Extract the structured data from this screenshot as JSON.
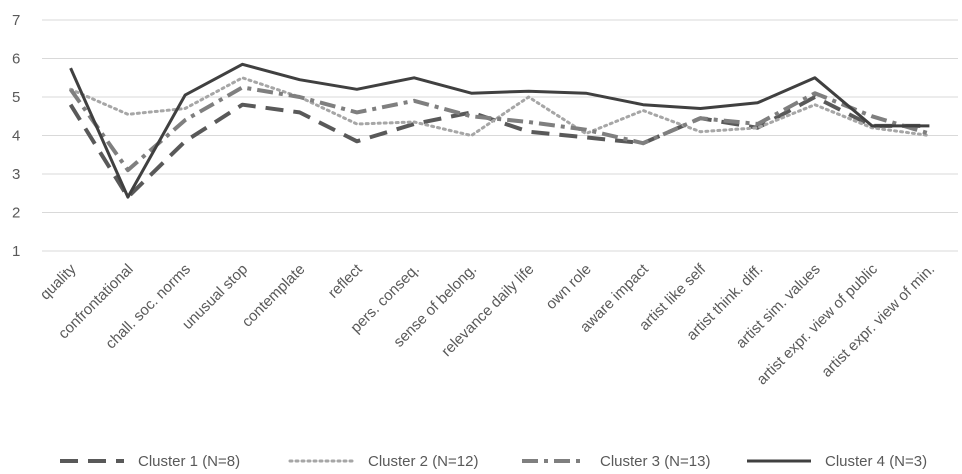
{
  "chart_data": {
    "type": "line",
    "title": "",
    "xlabel": "",
    "ylabel": "",
    "ylim": [
      1,
      7
    ],
    "yticks": [
      1,
      2,
      3,
      4,
      5,
      6,
      7
    ],
    "grid": "horizontal",
    "legend": "bottom",
    "categories": [
      "quality",
      "confrontational",
      "chall. soc. norms",
      "unusual stop",
      "contemplate",
      "reflect",
      "pers. conseq.",
      "sense of belong.",
      "relevance daily life",
      "own role",
      "aware impact",
      "artist like self",
      "artist think. diff.",
      "artist sim. values",
      "artist expr. view of public",
      "artist expr. view of min."
    ],
    "series": [
      {
        "name": "Cluster 1 (N=8)",
        "color": "#595959",
        "style": "long-dash",
        "values": [
          4.8,
          2.4,
          3.85,
          4.8,
          4.6,
          3.85,
          4.3,
          4.6,
          4.1,
          3.95,
          3.8,
          4.45,
          4.2,
          5.0,
          4.25,
          4.25
        ]
      },
      {
        "name": "Cluster 2 (N=12)",
        "color": "#a6a6a6",
        "style": "dotted",
        "values": [
          5.2,
          4.55,
          4.7,
          5.5,
          5.0,
          4.3,
          4.35,
          4.0,
          5.0,
          4.05,
          4.65,
          4.1,
          4.2,
          4.8,
          4.2,
          4.0
        ]
      },
      {
        "name": "Cluster 3 (N=13)",
        "color": "#7f7f7f",
        "style": "dash-dot",
        "values": [
          5.2,
          3.1,
          4.4,
          5.25,
          5.0,
          4.6,
          4.9,
          4.5,
          4.35,
          4.15,
          3.8,
          4.45,
          4.3,
          5.1,
          4.5,
          4.05
        ]
      },
      {
        "name": "Cluster 4 (N=3)",
        "color": "#404040",
        "style": "solid",
        "values": [
          5.75,
          2.4,
          5.05,
          5.85,
          5.45,
          5.2,
          5.5,
          5.1,
          5.15,
          5.1,
          4.8,
          4.7,
          4.85,
          5.5,
          4.25,
          4.25
        ]
      }
    ]
  }
}
